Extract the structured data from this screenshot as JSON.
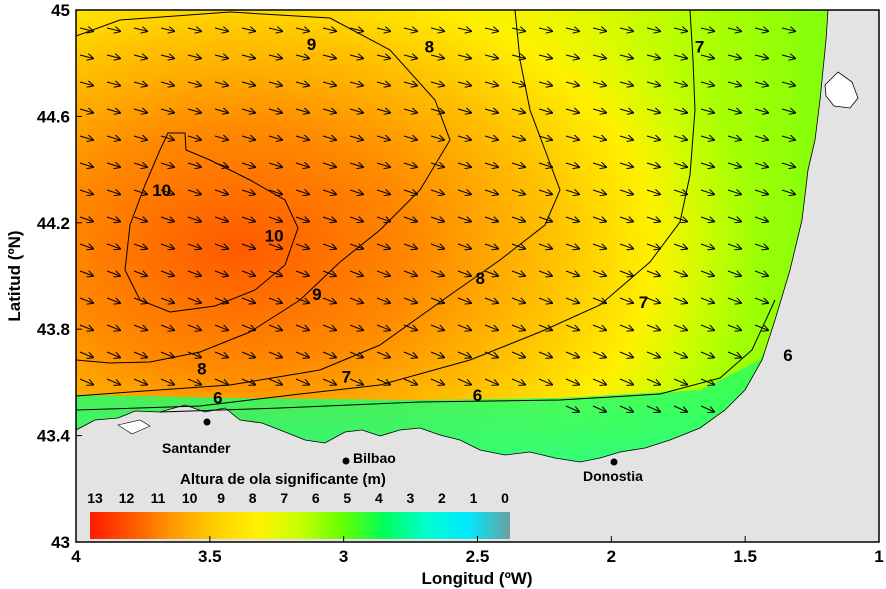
{
  "chart_data": {
    "type": "heatmap",
    "title": "",
    "xlabel": "Longitud (ºW)",
    "ylabel": "Latitud (ºN)",
    "xlim": [
      4,
      1
    ],
    "ylim": [
      43,
      45
    ],
    "x_ticks": [
      "4",
      "3.5",
      "3",
      "2.5",
      "2",
      "1.5",
      "1"
    ],
    "y_ticks": [
      "43",
      "43.4",
      "43.8",
      "44.2",
      "44.6",
      "45"
    ],
    "x_tick_values": [
      4,
      3.5,
      3,
      2.5,
      2,
      1.5,
      1
    ],
    "y_tick_values": [
      43,
      43.4,
      43.8,
      44.2,
      44.6,
      45
    ],
    "colorbar": {
      "title": "Altura de ola significante (m)",
      "ticks": [
        "13",
        "12",
        "11",
        "10",
        "9",
        "8",
        "7",
        "6",
        "5",
        "4",
        "3",
        "2",
        "1",
        "0"
      ],
      "colors": [
        "#ff1a00",
        "#ff5a00",
        "#ff9a00",
        "#ffd000",
        "#fff200",
        "#c8ff00",
        "#66ff00",
        "#00ff5a",
        "#00ffd0",
        "#00e8ff",
        "#6aa0a0"
      ]
    },
    "contours": [
      {
        "label": "10",
        "value": 10,
        "label_positions": [
          {
            "x": 3.68,
            "y": 44.3
          },
          {
            "x": 3.26,
            "y": 44.13
          }
        ]
      },
      {
        "label": "9",
        "value": 9,
        "label_positions": [
          {
            "x": 3.12,
            "y": 44.85
          },
          {
            "x": 3.1,
            "y": 43.91
          }
        ]
      },
      {
        "label": "8",
        "value": 8,
        "label_positions": [
          {
            "x": 2.68,
            "y": 44.84
          },
          {
            "x": 2.49,
            "y": 43.97
          },
          {
            "x": 3.53,
            "y": 43.63
          }
        ]
      },
      {
        "label": "7",
        "value": 7,
        "label_positions": [
          {
            "x": 1.67,
            "y": 44.84
          },
          {
            "x": 1.88,
            "y": 43.88
          },
          {
            "x": 2.99,
            "y": 43.6
          }
        ]
      },
      {
        "label": "6",
        "value": 6,
        "label_positions": [
          {
            "x": 1.34,
            "y": 43.68
          },
          {
            "x": 2.5,
            "y": 43.53
          },
          {
            "x": 3.47,
            "y": 43.52
          }
        ]
      }
    ],
    "wave_direction": "west-northwest swell, arrows pointing east to east-southeast",
    "cities": [
      {
        "name": "Santander",
        "lon": 3.52,
        "lat": 43.46
      },
      {
        "name": "Bilbao",
        "lon": 2.99,
        "lat": 43.31
      },
      {
        "name": "Donostia",
        "lon": 2.0,
        "lat": 43.31
      }
    ],
    "land_color": "#e3e3e3",
    "grid": false
  }
}
